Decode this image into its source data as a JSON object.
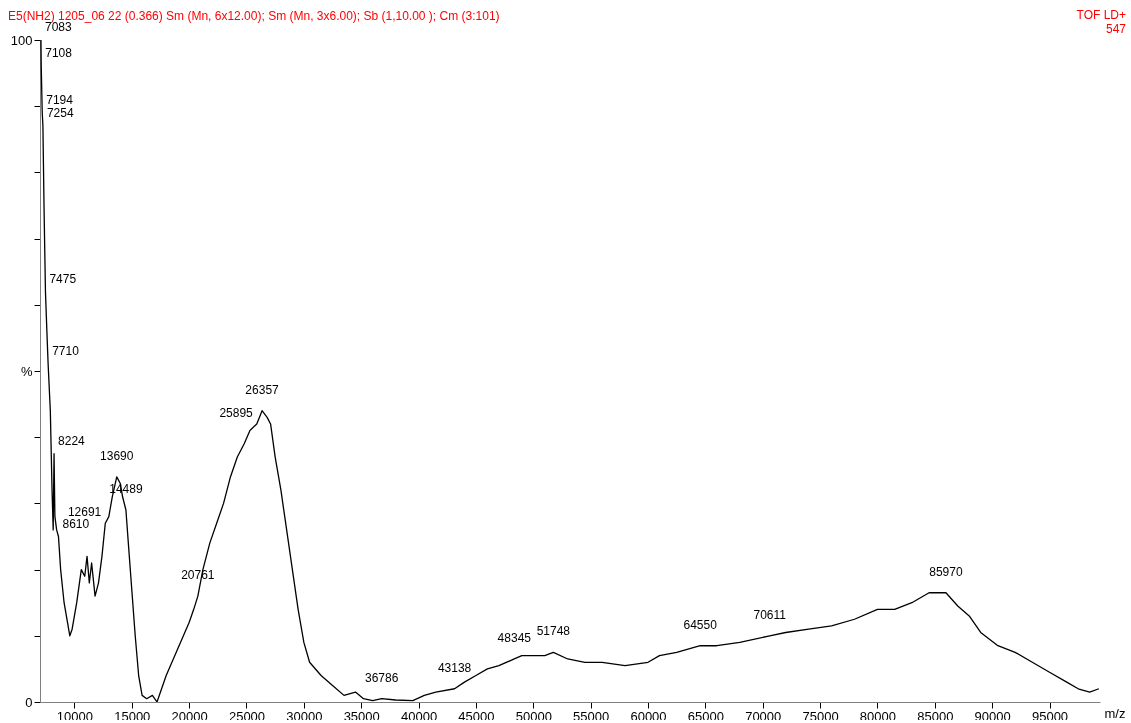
{
  "chart_data": {
    "type": "line",
    "title": "E5(NH2) 1205_06  22 (0.366) Sm (Mn, 6x12.00); Sm (Mn, 3x6.00); Sb (1,10.00 ); Cm (3:101)",
    "xlabel": "m/z",
    "x": [
      7083,
      7108,
      7194,
      7254,
      7350,
      7475,
      7600,
      7710,
      7900,
      8050,
      8150,
      8224,
      8300,
      8450,
      8610,
      8800,
      9100,
      9400,
      9600,
      9800,
      10200,
      10600,
      10900,
      11100,
      11300,
      11500,
      11800,
      12100,
      12400,
      12691,
      13000,
      13300,
      13690,
      14000,
      14200,
      14489,
      14700,
      15000,
      15300,
      15600,
      15900,
      16300,
      16800,
      17200,
      17600,
      18000,
      18500,
      19000,
      19500,
      20000,
      20400,
      20761,
      21200,
      21800,
      22400,
      23000,
      23600,
      24200,
      24800,
      25300,
      25895,
      26357,
      26800,
      27100,
      27500,
      28000,
      28500,
      29000,
      29500,
      30000,
      30500,
      31500,
      32500,
      33500,
      34500,
      35200,
      36000,
      36786,
      38000,
      39500,
      40500,
      41500,
      43138,
      44000,
      45000,
      46000,
      47000,
      48345,
      49000,
      50000,
      51000,
      51748,
      53000,
      54500,
      56000,
      58000,
      60000,
      61000,
      62500,
      64550,
      66000,
      68000,
      70611,
      72000,
      74000,
      76000,
      78000,
      80000,
      81500,
      83000,
      84500,
      85970,
      87000,
      88000,
      89000,
      90500,
      92000,
      93500,
      95000,
      96500,
      97500,
      98500,
      99300
    ],
    "series": [
      {
        "color": "#000000",
        "values": [
          100,
          96,
          89,
          87,
          75,
          62,
          56,
          51,
          44,
          32,
          26,
          37.5,
          28,
          26,
          25,
          20,
          15,
          12,
          10,
          11,
          15,
          20,
          19,
          22,
          18,
          21,
          16,
          18,
          22,
          27,
          28,
          31,
          34,
          33,
          31,
          29,
          24,
          17,
          10,
          4,
          1,
          0.5,
          1,
          0,
          2,
          4,
          6,
          8,
          10,
          12,
          14,
          16,
          20,
          24,
          27,
          30,
          34,
          37,
          39,
          41,
          42,
          44,
          43,
          42,
          37,
          32,
          26,
          20,
          14,
          9,
          6,
          4,
          2.5,
          1,
          1.5,
          0.5,
          0.2,
          0.5,
          0.3,
          0.2,
          1,
          1.5,
          2,
          3,
          4,
          5,
          5.5,
          6.5,
          7,
          7,
          7,
          7.5,
          6.5,
          6,
          6,
          5.5,
          6,
          7,
          7.5,
          8.5,
          8.5,
          9,
          10,
          10.5,
          11,
          11.5,
          12.5,
          14,
          14,
          15,
          16.5,
          16.5,
          14.5,
          13,
          10.5,
          8.5,
          7.5,
          6,
          4.5,
          3,
          2,
          1.5,
          2
        ]
      }
    ],
    "xlim": [
      7000,
      99400
    ],
    "ylim": [
      0,
      100
    ],
    "xticks": [
      10000,
      15000,
      20000,
      25000,
      30000,
      35000,
      40000,
      45000,
      50000,
      55000,
      60000,
      65000,
      70000,
      75000,
      80000,
      85000,
      90000,
      95000
    ],
    "yticks": [
      0,
      {
        "value": 10,
        "label": null
      },
      {
        "value": 20,
        "label": null
      },
      {
        "value": 30,
        "label": null
      },
      {
        "value": 40,
        "label": null
      },
      {
        "value": 50,
        "label": "%"
      },
      {
        "value": 60,
        "label": null
      },
      {
        "value": 70,
        "label": null
      },
      {
        "value": 80,
        "label": null
      },
      {
        "value": 90,
        "label": null
      },
      100
    ],
    "annotations": [
      "TOF LD+",
      "547",
      {
        "text": "7083",
        "x": 7083,
        "y": 100
      },
      {
        "text": "7108",
        "x": 7108,
        "y": 96
      },
      {
        "text": "7194",
        "x": 7194,
        "y": 89
      },
      {
        "text": "7254",
        "x": 7254,
        "y": 87
      },
      {
        "text": "7475",
        "x": 7475,
        "y": 62
      },
      {
        "text": "7710",
        "x": 7710,
        "y": 51
      },
      {
        "text": "8224",
        "x": 8224,
        "y": 37.5
      },
      {
        "text": "8610",
        "x": 8610,
        "y": 25
      },
      {
        "text": "12691",
        "x": 12691,
        "y": 27
      },
      {
        "text": "13690",
        "x": 13690,
        "y": 34
      },
      {
        "text": "14489",
        "x": 14489,
        "y": 29
      },
      {
        "text": "20761",
        "x": 20761,
        "y": 16
      },
      {
        "text": "25895",
        "x": 25895,
        "y": 42
      },
      {
        "text": "26357",
        "x": 26357,
        "y": 44
      },
      {
        "text": "36786",
        "x": 36786,
        "y": 0.5
      },
      {
        "text": "43138",
        "x": 43138,
        "y": 2
      },
      {
        "text": "48345",
        "x": 48345,
        "y": 6.5
      },
      {
        "text": "51748",
        "x": 51748,
        "y": 7.5
      },
      {
        "text": "64550",
        "x": 64550,
        "y": 8.5
      },
      {
        "text": "70611",
        "x": 70611,
        "y": 10
      },
      {
        "text": "85970",
        "x": 85970,
        "y": 16.5
      }
    ]
  }
}
